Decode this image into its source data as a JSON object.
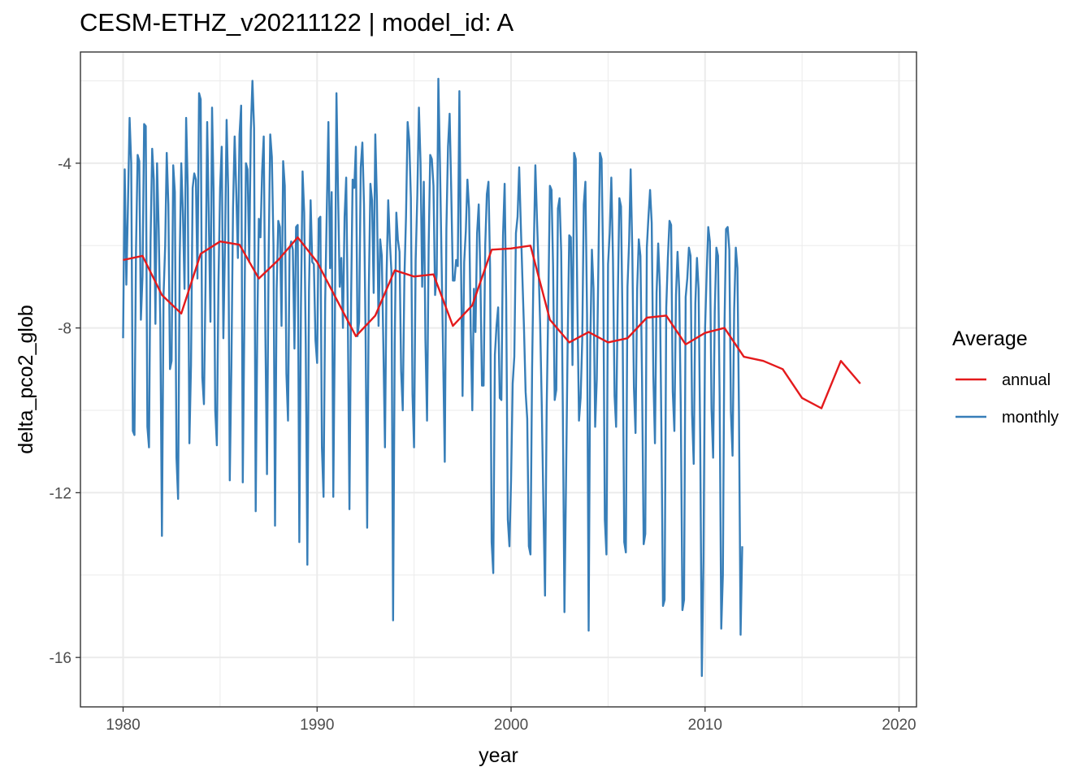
{
  "chart_data": {
    "type": "line",
    "title": "CESM-ETHZ_v20211122 | model_id: A",
    "xlabel": "year",
    "ylabel": "delta_pco2_glob",
    "xlim": [
      1977.8,
      2020.9
    ],
    "ylim": [
      -17.2,
      -1.3
    ],
    "x_ticks": [
      1980,
      1990,
      2000,
      2010,
      2020
    ],
    "x_tick_labels": [
      "1980",
      "1990",
      "2000",
      "2010",
      "2020"
    ],
    "y_ticks": [
      -4,
      -8,
      -12,
      -16
    ],
    "y_tick_labels": [
      "-4",
      "-8",
      "-12",
      "-16"
    ],
    "grid": true,
    "legend": {
      "title": "Average",
      "position": "right",
      "entries": [
        "annual",
        "monthly"
      ]
    },
    "series": [
      {
        "name": "annual",
        "color": "#e41a1c",
        "x": [
          1980,
          1981,
          1982,
          1983,
          1984,
          1985,
          1986,
          1987,
          1988,
          1989,
          1990,
          1991,
          1992,
          1993,
          1994,
          1995,
          1996,
          1997,
          1998,
          1999,
          2000,
          2001,
          2002,
          2003,
          2004,
          2005,
          2006,
          2007,
          2008,
          2009,
          2010,
          2011,
          2012,
          2013,
          2014,
          2015,
          2016,
          2017,
          2018
        ],
        "y": [
          -6.35,
          -6.25,
          -7.2,
          -7.65,
          -6.2,
          -5.9,
          -5.98,
          -6.8,
          -6.35,
          -5.8,
          -6.4,
          -7.3,
          -8.2,
          -7.7,
          -6.6,
          -6.75,
          -6.7,
          -7.95,
          -7.45,
          -6.1,
          -6.07,
          -6.0,
          -7.8,
          -8.35,
          -8.1,
          -8.35,
          -8.25,
          -7.75,
          -7.7,
          -8.4,
          -8.12,
          -8.0,
          -8.7,
          -8.8,
          -9.0,
          -9.7,
          -9.95,
          -8.8,
          -9.35
        ]
      },
      {
        "name": "monthly",
        "color": "#377eb8",
        "start": [
          1980,
          1
        ],
        "y": [
          -8.25,
          -4.15,
          -6.95,
          -5.0,
          -2.9,
          -4.0,
          -10.5,
          -10.6,
          -6.1,
          -3.8,
          -3.95,
          -7.8,
          -6.75,
          -3.05,
          -3.1,
          -10.4,
          -10.9,
          -5.9,
          -3.65,
          -4.4,
          -7.9,
          -4.0,
          -5.6,
          -7.85,
          -13.05,
          -7.2,
          -6.0,
          -3.75,
          -5.0,
          -9.0,
          -8.8,
          -4.05,
          -4.7,
          -11.15,
          -12.15,
          -6.3,
          -4.0,
          -5.2,
          -7.05,
          -2.9,
          -4.6,
          -10.8,
          -8.9,
          -4.6,
          -4.25,
          -4.4,
          -6.8,
          -2.3,
          -2.45,
          -9.2,
          -9.85,
          -6.9,
          -3.0,
          -5.35,
          -7.85,
          -2.65,
          -4.7,
          -10.0,
          -10.85,
          -6.85,
          -4.6,
          -3.6,
          -8.25,
          -6.0,
          -2.95,
          -4.6,
          -11.7,
          -8.9,
          -5.1,
          -3.35,
          -4.7,
          -6.3,
          -3.3,
          -2.6,
          -11.75,
          -7.95,
          -4.0,
          -4.15,
          -6.4,
          -3.2,
          -2.0,
          -3.15,
          -12.45,
          -7.9,
          -5.35,
          -5.8,
          -4.2,
          -3.35,
          -8.1,
          -11.55,
          -6.3,
          -3.3,
          -3.85,
          -6.0,
          -12.8,
          -7.05,
          -5.4,
          -5.55,
          -7.95,
          -3.95,
          -4.55,
          -9.1,
          -10.25,
          -6.1,
          -5.9,
          -6.1,
          -8.5,
          -5.55,
          -5.5,
          -13.2,
          -7.5,
          -4.2,
          -5.2,
          -8.4,
          -13.75,
          -7.1,
          -4.9,
          -6.4,
          -6.45,
          -8.3,
          -8.85,
          -5.35,
          -5.3,
          -10.9,
          -12.1,
          -7.35,
          -5.15,
          -3.0,
          -6.55,
          -4.7,
          -12.1,
          -7.8,
          -2.3,
          -4.75,
          -7.0,
          -6.3,
          -8.0,
          -5.3,
          -4.35,
          -7.75,
          -12.4,
          -7.35,
          -4.4,
          -4.6,
          -3.6,
          -8.2,
          -7.85,
          -4.1,
          -3.5,
          -5.0,
          -8.25,
          -12.85,
          -7.1,
          -4.5,
          -4.9,
          -7.15,
          -3.3,
          -4.9,
          -7.95,
          -5.85,
          -6.25,
          -8.4,
          -10.9,
          -6.7,
          -4.9,
          -5.9,
          -6.65,
          -15.1,
          -8.4,
          -5.2,
          -5.85,
          -6.15,
          -9.05,
          -10.0,
          -6.8,
          -5.3,
          -3.0,
          -3.45,
          -4.85,
          -9.6,
          -10.9,
          -6.35,
          -4.8,
          -2.65,
          -4.0,
          -7.0,
          -4.45,
          -8.3,
          -10.25,
          -6.0,
          -3.8,
          -3.9,
          -4.55,
          -7.2,
          -6.7,
          -1.95,
          -4.0,
          -6.4,
          -8.8,
          -11.25,
          -5.6,
          -3.6,
          -2.8,
          -4.7,
          -6.85,
          -6.85,
          -6.35,
          -6.5,
          -2.25,
          -6.25,
          -9.65,
          -6.4,
          -5.65,
          -4.4,
          -5.1,
          -8.0,
          -10.0,
          -7.05,
          -8.1,
          -5.7,
          -5.0,
          -6.7,
          -9.4,
          -9.4,
          -6.0,
          -4.75,
          -4.45,
          -6.55,
          -13.2,
          -13.95,
          -8.65,
          -7.95,
          -7.5,
          -9.7,
          -9.75,
          -5.75,
          -4.5,
          -7.3,
          -12.65,
          -13.3,
          -11.7,
          -9.35,
          -8.7,
          -5.7,
          -5.3,
          -4.1,
          -5.5,
          -6.75,
          -8.0,
          -9.55,
          -10.2,
          -13.3,
          -13.5,
          -9.0,
          -6.2,
          -4.05,
          -5.35,
          -6.5,
          -7.9,
          -9.9,
          -12.3,
          -14.5,
          -10.0,
          -7.45,
          -4.55,
          -4.65,
          -6.5,
          -9.75,
          -9.5,
          -5.1,
          -4.85,
          -6.15,
          -9.95,
          -14.9,
          -11.65,
          -8.3,
          -5.75,
          -5.8,
          -8.9,
          -3.75,
          -3.9,
          -7.4,
          -10.25,
          -9.7,
          -8.3,
          -5.0,
          -4.45,
          -7.65,
          -15.35,
          -8.4,
          -6.1,
          -7.05,
          -10.4,
          -9.25,
          -6.45,
          -3.75,
          -3.9,
          -6.5,
          -12.65,
          -13.5,
          -6.45,
          -5.7,
          -4.35,
          -6.3,
          -9.65,
          -10.4,
          -7.4,
          -4.85,
          -5.05,
          -8.0,
          -13.2,
          -13.45,
          -7.0,
          -5.9,
          -4.15,
          -6.1,
          -9.45,
          -10.55,
          -7.05,
          -5.85,
          -6.25,
          -9.25,
          -13.25,
          -13.0,
          -6.05,
          -5.3,
          -4.65,
          -5.45,
          -9.15,
          -10.8,
          -7.15,
          -5.95,
          -7.0,
          -10.4,
          -14.75,
          -14.6,
          -7.5,
          -6.3,
          -5.4,
          -5.5,
          -9.55,
          -10.5,
          -7.2,
          -6.15,
          -7.05,
          -9.95,
          -14.85,
          -14.6,
          -7.25,
          -6.8,
          -6.05,
          -6.25,
          -10.1,
          -11.3,
          -7.4,
          -6.3,
          -7.05,
          -10.7,
          -16.45,
          -13.65,
          -8.0,
          -6.65,
          -5.55,
          -5.9,
          -9.95,
          -11.15,
          -7.6,
          -6.05,
          -6.25,
          -9.65,
          -15.3,
          -14.0,
          -8.05,
          -5.6,
          -5.55,
          -6.1,
          -10.05,
          -11.1,
          -7.55,
          -6.05,
          -6.55,
          -10.05,
          -15.45,
          -13.3
        ]
      }
    ]
  }
}
